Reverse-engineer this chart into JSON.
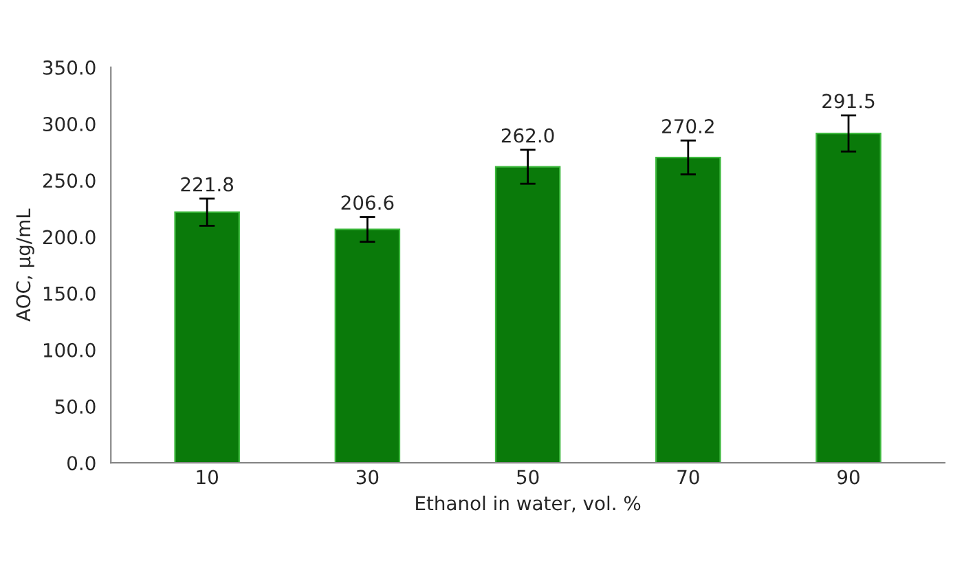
{
  "chart_data": {
    "type": "bar",
    "xlabel": "Ethanol in water, vol. %",
    "ylabel": "AOC, µg/mL",
    "categories": [
      "10",
      "30",
      "50",
      "70",
      "90"
    ],
    "values": [
      221.8,
      206.6,
      262.0,
      270.2,
      291.5
    ],
    "errors": [
      12,
      11,
      15,
      15,
      16
    ],
    "color": "#0a7a0a",
    "data_labels": true,
    "value_labels": [
      "221.8",
      "206.6",
      "262.0",
      "270.2",
      "291.5"
    ],
    "ylim": [
      0,
      350
    ],
    "yticks": [
      {
        "value": 0,
        "label": "0.0"
      },
      {
        "value": 50,
        "label": "50.0"
      },
      {
        "value": 100,
        "label": "100.0"
      },
      {
        "value": 150,
        "label": "150.0"
      },
      {
        "value": 200,
        "label": "200.0"
      },
      {
        "value": 250,
        "label": "250.0"
      },
      {
        "value": 300,
        "label": "300.0"
      },
      {
        "value": 350,
        "label": "350.0"
      }
    ],
    "grid": false
  }
}
